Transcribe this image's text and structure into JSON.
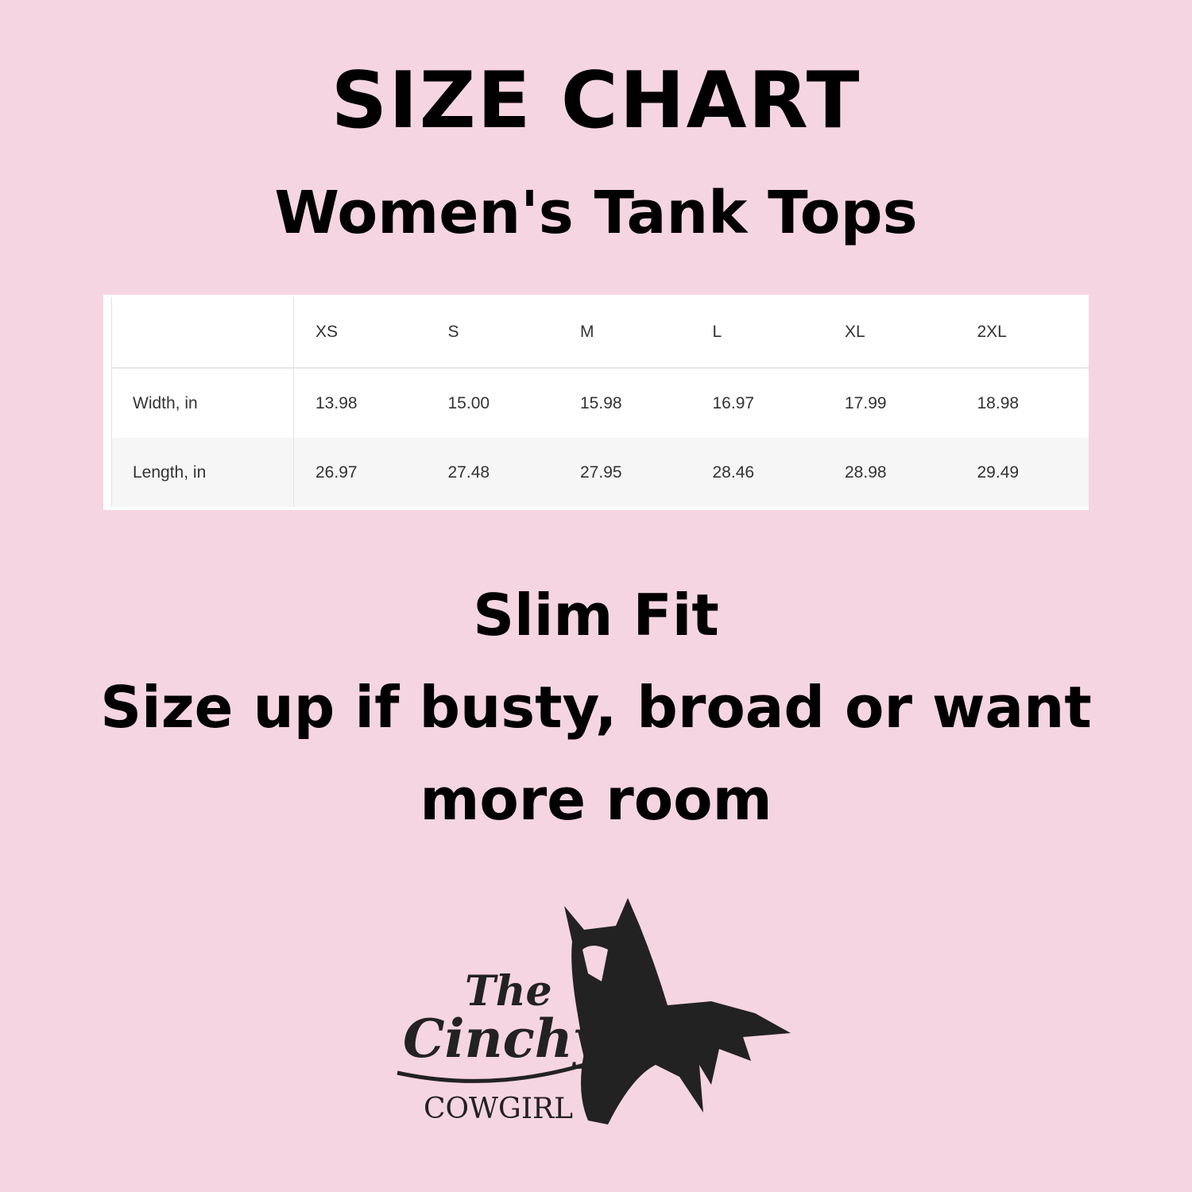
{
  "heading": "SIZE CHART",
  "subheading": "Women's Tank Tops",
  "table": {
    "columns": [
      "XS",
      "S",
      "M",
      "L",
      "XL",
      "2XL"
    ],
    "rows": [
      {
        "label": "Width, in",
        "values": [
          "13.98",
          "15.00",
          "15.98",
          "16.97",
          "17.99",
          "18.98"
        ]
      },
      {
        "label": "Length, in",
        "values": [
          "26.97",
          "27.48",
          "27.95",
          "28.46",
          "28.98",
          "29.49"
        ]
      }
    ]
  },
  "fit": {
    "line1": "Slim Fit",
    "line2": "Size up if busty, broad or want more room"
  },
  "logo": {
    "the": "The",
    "cinchy": "Cinchy",
    "cowgirl": "COWGIRL",
    "icon": "horse-head-icon"
  },
  "colors": {
    "background": "#f5d5e1",
    "text": "#000000"
  }
}
